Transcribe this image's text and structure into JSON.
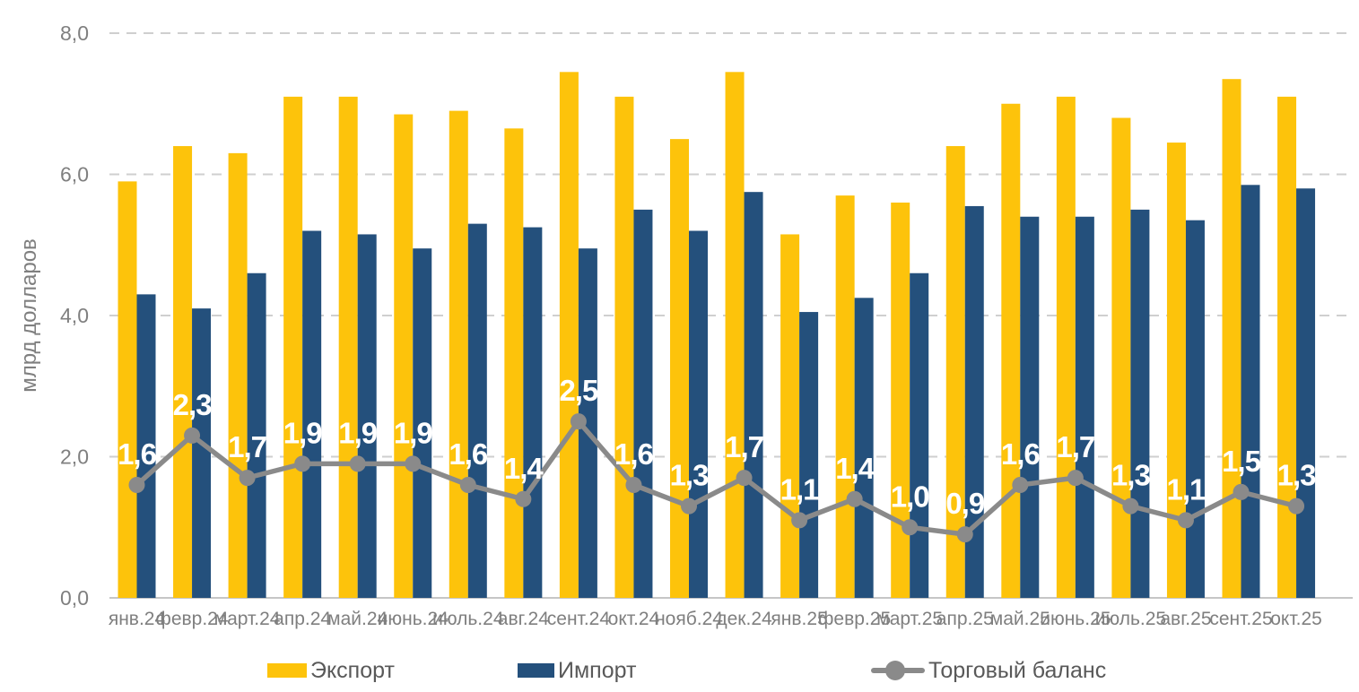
{
  "chart_data": {
    "type": "bar",
    "subtype": "grouped-bars-with-line-overlay",
    "title": "",
    "xlabel": "",
    "ylabel": "млрд долларов",
    "ylim": [
      0,
      8
    ],
    "grid": "horizontal-dashed",
    "legend_position": "bottom",
    "decimal_separator": ",",
    "yticks": [
      {
        "value": 0,
        "label": "0,0"
      },
      {
        "value": 2,
        "label": "2,0"
      },
      {
        "value": 4,
        "label": "4,0"
      },
      {
        "value": 6,
        "label": "6,0"
      },
      {
        "value": 8,
        "label": "8,0"
      }
    ],
    "categories": [
      "янв.24",
      "февр.24",
      "март.24",
      "апр.24",
      "май.24",
      "июнь.24",
      "июль.24",
      "авг.24",
      "сент.24",
      "окт.24",
      "нояб.24",
      "дек.24",
      "янв.25",
      "февр.25",
      "март.25",
      "апр.25",
      "май.25",
      "июнь.25",
      "июль.25",
      "авг.25",
      "сент.25",
      "окт.25"
    ],
    "series": [
      {
        "name": "Экспорт",
        "type": "bar",
        "color": "#FDC30B",
        "values": [
          5.9,
          6.4,
          6.3,
          7.1,
          7.1,
          6.85,
          6.9,
          6.65,
          7.45,
          7.1,
          6.5,
          7.45,
          5.15,
          5.7,
          5.6,
          6.4,
          7.0,
          7.1,
          6.8,
          6.45,
          7.35,
          7.1
        ]
      },
      {
        "name": "Импорт",
        "type": "bar",
        "color": "#24507C",
        "values": [
          4.3,
          4.1,
          4.6,
          5.2,
          5.15,
          4.95,
          5.3,
          5.25,
          4.95,
          5.5,
          5.2,
          5.75,
          4.05,
          4.25,
          4.6,
          5.55,
          5.4,
          5.4,
          5.5,
          5.35,
          5.85,
          5.8
        ]
      },
      {
        "name": "Торговый баланс",
        "type": "line",
        "color": "#8A8A8A",
        "label_color": "#FFFFFF",
        "values": [
          1.6,
          2.3,
          1.7,
          1.9,
          1.9,
          1.9,
          1.6,
          1.4,
          2.5,
          1.6,
          1.3,
          1.7,
          1.1,
          1.4,
          1.0,
          0.9,
          1.6,
          1.7,
          1.3,
          1.1,
          1.5,
          1.3
        ],
        "labels": [
          "1,6",
          "2,3",
          "1,7",
          "1,9",
          "1,9",
          "1,9",
          "1,6",
          "1,4",
          "2,5",
          "1,6",
          "1,3",
          "1,7",
          "1,1",
          "1,4",
          "1,0",
          "0,9",
          "1,6",
          "1,7",
          "1,3",
          "1,1",
          "1,5",
          "1,3"
        ]
      }
    ],
    "colors": {
      "gridline": "#CFCFCF",
      "axis_line": "#C6C6C6",
      "tick_label": "#7F7F7F",
      "legend_text": "#595959"
    }
  }
}
